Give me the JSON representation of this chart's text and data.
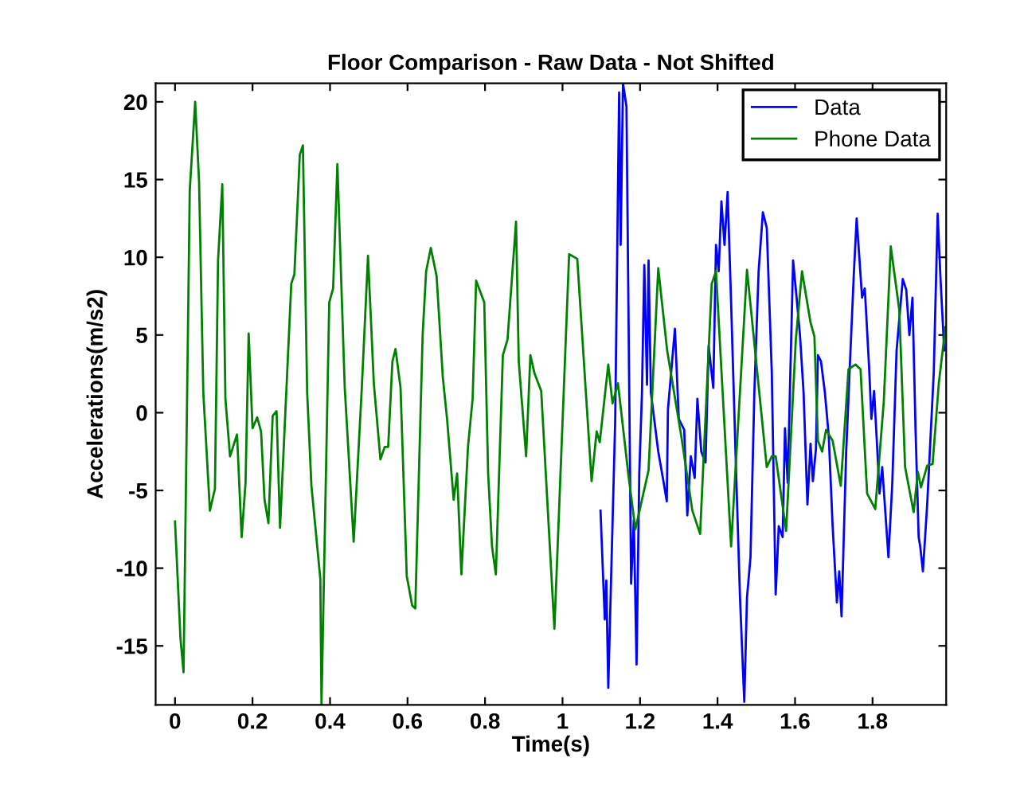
{
  "chart_data": {
    "type": "line",
    "title": "Floor Comparison - Raw Data - Not Shifted",
    "xlabel": "Time(s)",
    "ylabel": "Accelerations(m/s2)",
    "xlim": [
      -0.05,
      1.99
    ],
    "xticks": [
      0,
      0.2,
      0.4,
      0.6,
      0.8,
      1,
      1.2,
      1.4,
      1.6,
      1.8
    ],
    "ylim": [
      -18.8,
      21.2
    ],
    "yticks": [
      -15,
      -10,
      -5,
      0,
      5,
      10,
      15,
      20
    ],
    "grid": false,
    "legend": "top right",
    "marker": "none",
    "line_style": "solid",
    "series": [
      {
        "name": "Data",
        "color": "#0000ff",
        "x": [
          1.098,
          1.109,
          1.113,
          1.118,
          1.136,
          1.146,
          1.15,
          1.156,
          1.165,
          1.177,
          1.184,
          1.191,
          1.198,
          1.205,
          1.211,
          1.218,
          1.222,
          1.228,
          1.247,
          1.259,
          1.269,
          1.272,
          1.29,
          1.3,
          1.314,
          1.322,
          1.331,
          1.341,
          1.348,
          1.358,
          1.369,
          1.377,
          1.389,
          1.396,
          1.403,
          1.41,
          1.418,
          1.426,
          1.435,
          1.448,
          1.458,
          1.465,
          1.469,
          1.476,
          1.485,
          1.495,
          1.506,
          1.517,
          1.527,
          1.54,
          1.55,
          1.558,
          1.568,
          1.574,
          1.581,
          1.595,
          1.604,
          1.613,
          1.622,
          1.632,
          1.64,
          1.646,
          1.654,
          1.659,
          1.667,
          1.677,
          1.687,
          1.697,
          1.708,
          1.714,
          1.72,
          1.732,
          1.741,
          1.752,
          1.759,
          1.773,
          1.78,
          1.791,
          1.797,
          1.804,
          1.811,
          1.818,
          1.825,
          1.841,
          1.851,
          1.862,
          1.878,
          1.887,
          1.895,
          1.903,
          1.911,
          1.919,
          1.923,
          1.93,
          1.941,
          1.958,
          1.968,
          1.975,
          1.985
        ],
        "values": [
          -6.3,
          -13.3,
          -10.8,
          -17.7,
          -0.4,
          20.6,
          10.8,
          21.2,
          19.7,
          -11.0,
          -6.9,
          -16.2,
          -3.9,
          1.3,
          9.5,
          1.8,
          9.8,
          1.3,
          -2.5,
          -4.2,
          -5.7,
          0.2,
          5.4,
          -0.4,
          -1.1,
          -6.6,
          -2.8,
          -4.2,
          0.9,
          -2.5,
          -3.2,
          4.3,
          1.6,
          10.8,
          9.1,
          13.6,
          10.8,
          14.2,
          7.1,
          -3.9,
          -11.9,
          -16.2,
          -18.6,
          -11.9,
          -9.3,
          1.3,
          9.1,
          12.9,
          11.9,
          2.6,
          -11.7,
          -7.3,
          -8.0,
          -1.0,
          -4.5,
          9.8,
          7.4,
          4.9,
          1.3,
          -5.9,
          -2.0,
          -4.4,
          -2.3,
          3.7,
          3.3,
          1.3,
          -1.5,
          -7.3,
          -12.2,
          -10.2,
          -13.1,
          -2.5,
          2.8,
          9.1,
          12.5,
          7.4,
          8.0,
          3.0,
          -0.4,
          1.4,
          -1.8,
          -5.2,
          -3.5,
          -9.3,
          -4.5,
          4.0,
          8.6,
          7.9,
          5.0,
          7.4,
          -1.1,
          -8.0,
          -8.6,
          -10.2,
          -5.9,
          2.6,
          12.8,
          8.8,
          4.0
        ]
      },
      {
        "name": "Phone Data",
        "color": "#008000",
        "x": [
          0.0,
          0.014,
          0.022,
          0.038,
          0.052,
          0.062,
          0.073,
          0.09,
          0.103,
          0.111,
          0.122,
          0.13,
          0.142,
          0.16,
          0.172,
          0.182,
          0.19,
          0.2,
          0.212,
          0.222,
          0.231,
          0.241,
          0.252,
          0.262,
          0.271,
          0.3,
          0.308,
          0.322,
          0.33,
          0.341,
          0.352,
          0.375,
          0.378,
          0.398,
          0.408,
          0.419,
          0.438,
          0.461,
          0.482,
          0.498,
          0.513,
          0.53,
          0.541,
          0.55,
          0.561,
          0.569,
          0.582,
          0.598,
          0.612,
          0.62,
          0.639,
          0.648,
          0.66,
          0.675,
          0.691,
          0.702,
          0.719,
          0.728,
          0.739,
          0.756,
          0.768,
          0.777,
          0.798,
          0.808,
          0.818,
          0.828,
          0.846,
          0.858,
          0.88,
          0.887,
          0.906,
          0.917,
          0.928,
          0.945,
          0.979,
          1.017,
          1.038,
          1.075,
          1.088,
          1.096,
          1.118,
          1.129,
          1.143,
          1.17,
          1.188,
          1.222,
          1.247,
          1.27,
          1.307,
          1.335,
          1.355,
          1.385,
          1.396,
          1.435,
          1.476,
          1.527,
          1.54,
          1.55,
          1.577,
          1.602,
          1.618,
          1.64,
          1.65,
          1.659,
          1.67,
          1.68,
          1.697,
          1.718,
          1.738,
          1.756,
          1.769,
          1.786,
          1.807,
          1.829,
          1.847,
          1.869,
          1.884,
          1.906,
          1.917,
          1.925,
          1.941,
          1.955,
          1.971,
          1.988
        ],
        "values": [
          -7.0,
          -14.5,
          -16.7,
          14.3,
          20.0,
          14.9,
          1.3,
          -6.3,
          -4.9,
          9.8,
          14.7,
          0.9,
          -2.8,
          -1.4,
          -8.0,
          -4.5,
          5.1,
          -1.0,
          -0.3,
          -1.2,
          -5.6,
          -7.1,
          -0.2,
          0.1,
          -7.4,
          8.3,
          8.9,
          16.6,
          17.2,
          1.3,
          -4.7,
          -10.7,
          -18.8,
          7.1,
          8.0,
          16.0,
          1.6,
          -8.3,
          1.6,
          10.1,
          1.9,
          -3.0,
          -2.2,
          -2.2,
          3.3,
          4.1,
          1.6,
          -10.5,
          -12.4,
          -12.6,
          5.0,
          9.1,
          10.6,
          8.8,
          2.3,
          -0.4,
          -5.6,
          -3.9,
          -10.4,
          -2.2,
          0.9,
          8.5,
          7.1,
          -3.9,
          -8.6,
          -10.4,
          3.7,
          4.7,
          12.3,
          3.3,
          -2.8,
          3.7,
          2.5,
          1.4,
          -13.9,
          10.2,
          9.9,
          -4.4,
          -1.2,
          -1.9,
          3.1,
          0.6,
          1.9,
          -4.0,
          -7.5,
          -3.7,
          9.3,
          4.0,
          -1.6,
          -6.3,
          -7.8,
          8.3,
          9.1,
          -8.6,
          9.2,
          -3.5,
          -2.8,
          -2.8,
          -7.6,
          4.7,
          9.1,
          5.8,
          4.9,
          -1.8,
          -2.5,
          -1.1,
          -1.8,
          -4.7,
          2.8,
          3.1,
          2.8,
          -5.2,
          -6.2,
          0.7,
          10.7,
          6.6,
          -3.5,
          -6.4,
          -3.8,
          -4.8,
          -3.4,
          -3.3,
          1.9,
          5.5
        ]
      }
    ]
  }
}
